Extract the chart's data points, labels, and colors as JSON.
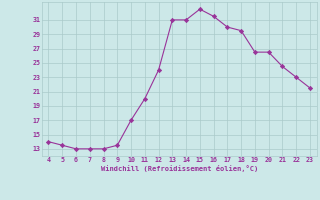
{
  "x": [
    4,
    5,
    6,
    7,
    8,
    9,
    10,
    11,
    12,
    13,
    14,
    15,
    16,
    17,
    18,
    19,
    20,
    21,
    22,
    23
  ],
  "y": [
    14,
    13.5,
    13,
    13,
    13,
    13.5,
    17,
    20,
    24,
    31,
    31,
    32.5,
    31.5,
    30,
    29.5,
    26.5,
    26.5,
    24.5,
    23,
    21.5
  ],
  "line_color": "#993399",
  "marker_color": "#993399",
  "bg_color": "#cce8e8",
  "grid_color": "#aacaca",
  "xlabel": "Windchill (Refroidissement éolien,°C)",
  "xlabel_color": "#993399",
  "tick_color": "#993399",
  "xlim": [
    3.5,
    23.5
  ],
  "ylim": [
    12,
    33.5
  ],
  "xticks": [
    4,
    5,
    6,
    7,
    8,
    9,
    10,
    11,
    12,
    13,
    14,
    15,
    16,
    17,
    18,
    19,
    20,
    21,
    22,
    23
  ],
  "yticks": [
    13,
    15,
    17,
    19,
    21,
    23,
    25,
    27,
    29,
    31
  ],
  "figsize": [
    3.2,
    2.0
  ],
  "dpi": 100
}
